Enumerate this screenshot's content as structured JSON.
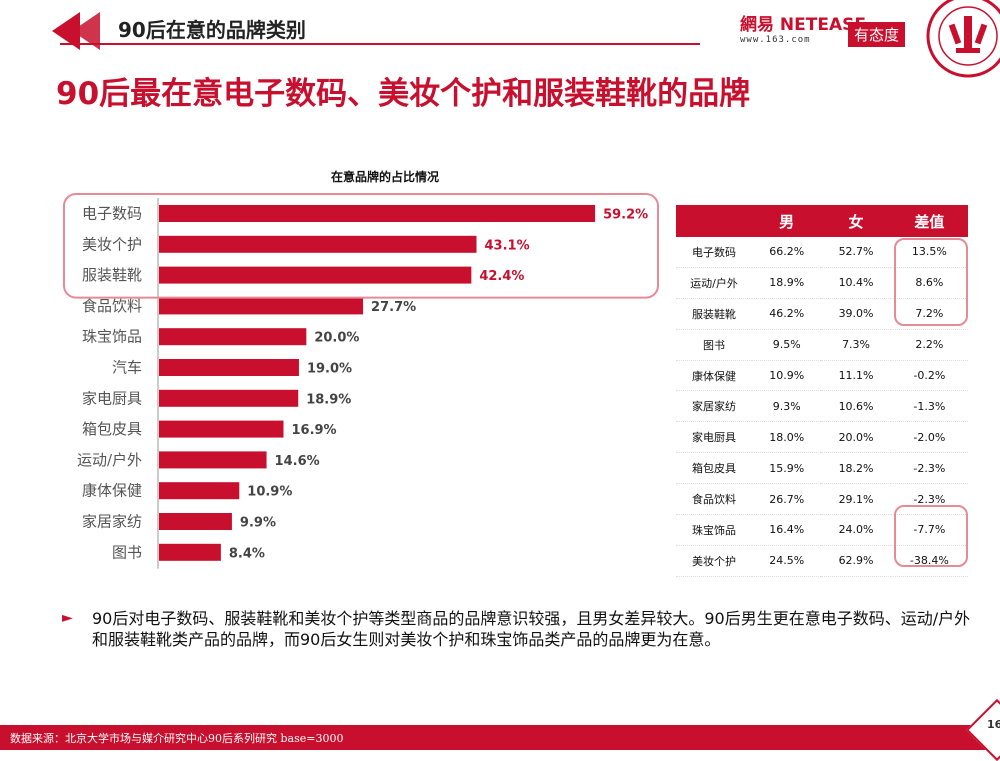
{
  "header": {
    "section_title": "90后在意的品牌类别"
  },
  "logos": {
    "netease_main": "網易 NETEASE",
    "netease_sub": "www.163.com",
    "youtaidu": "有态度"
  },
  "headline": {
    "part1": "90后最在意",
    "part2": "电子数码、美妆个护和服装鞋靴的",
    "part3": "品牌"
  },
  "chart_data": {
    "type": "bar",
    "orientation": "horizontal",
    "title": "在意品牌的占比情况",
    "categories": [
      "电子数码",
      "美妆个护",
      "服装鞋靴",
      "食品饮料",
      "珠宝饰品",
      "汽车",
      "家电厨具",
      "箱包皮具",
      "运动/户外",
      "康体保健",
      "家居家纺",
      "图书"
    ],
    "values": [
      59.2,
      43.1,
      42.4,
      27.7,
      20.0,
      19.0,
      18.9,
      16.9,
      14.6,
      10.9,
      9.9,
      8.4
    ],
    "value_labels": [
      "59.2%",
      "43.1%",
      "42.4%",
      "27.7%",
      "20.0%",
      "19.0%",
      "18.9%",
      "16.9%",
      "14.6%",
      "10.9%",
      "9.9%",
      "8.4%"
    ],
    "xlim": [
      0,
      60
    ],
    "bar_color": "#c8102e",
    "highlighted": [
      "电子数码",
      "美妆个护",
      "服装鞋靴"
    ]
  },
  "table": {
    "headers": [
      "",
      "男",
      "女",
      "差值"
    ],
    "rows": [
      [
        "电子数码",
        "66.2%",
        "52.7%",
        "13.5%"
      ],
      [
        "运动/户外",
        "18.9%",
        "10.4%",
        "8.6%"
      ],
      [
        "服装鞋靴",
        "46.2%",
        "39.0%",
        "7.2%"
      ],
      [
        "图书",
        "9.5%",
        "7.3%",
        "2.2%"
      ],
      [
        "康体保健",
        "10.9%",
        "11.1%",
        "-0.2%"
      ],
      [
        "家居家纺",
        "9.3%",
        "10.6%",
        "-1.3%"
      ],
      [
        "家电厨具",
        "18.0%",
        "20.0%",
        "-2.0%"
      ],
      [
        "箱包皮具",
        "15.9%",
        "18.2%",
        "-2.3%"
      ],
      [
        "食品饮料",
        "26.7%",
        "29.1%",
        "-2.3%"
      ],
      [
        "珠宝饰品",
        "16.4%",
        "24.0%",
        "-7.7%"
      ],
      [
        "美妆个护",
        "24.5%",
        "62.9%",
        "-38.4%"
      ]
    ]
  },
  "bullet": {
    "arrow": "►",
    "text": "90后对电子数码、服装鞋靴和美妆个护等类型商品的品牌意识较强，且男女差异较大。90后男生更在意电子数码、运动/户外和服装鞋靴类产品的品牌，而90后女生则对美妆个护和珠宝饰品类产品的品牌更为在意。"
  },
  "footer": {
    "source": "数据来源：北京大学市场与媒介研究中心90后系列研究 base=3000",
    "page": "16"
  },
  "colors": {
    "accent": "#c8102e",
    "ring": "#e58a96"
  }
}
